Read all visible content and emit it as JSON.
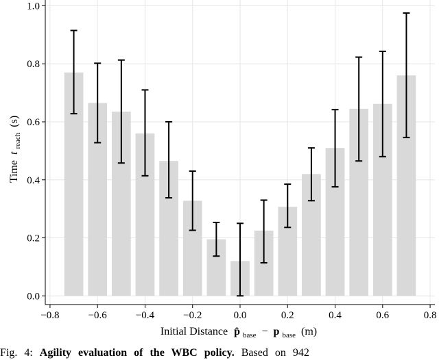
{
  "chart_data": {
    "type": "bar",
    "title": "",
    "xlabel": "Initial Distance",
    "xlabel_math": "p̂base − pbase (m)",
    "xlabel_parts": {
      "p_hat": "p̂",
      "sub1": "base",
      "minus": "−",
      "p": "p",
      "sub2": "base",
      "unit": "(m)"
    },
    "ylabel": "Time",
    "ylabel_var": "t",
    "ylabel_sub": "reach",
    "ylabel_unit": "(s)",
    "xlim": [
      -0.82,
      0.82
    ],
    "ylim": [
      -0.03,
      1.02
    ],
    "x_ticks": [
      "−0.8",
      "−0.6",
      "−0.4",
      "−0.2",
      "0.0",
      "0.2",
      "0.4",
      "0.6",
      "0.8"
    ],
    "x_tick_values": [
      -0.8,
      -0.6,
      -0.4,
      -0.2,
      0.0,
      0.2,
      0.4,
      0.6,
      0.8
    ],
    "y_ticks": [
      "0.0",
      "0.2",
      "0.4",
      "0.6",
      "0.8",
      "1.0"
    ],
    "y_tick_values": [
      0.0,
      0.2,
      0.4,
      0.6,
      0.8,
      1.0
    ],
    "grid": true,
    "bar_color": "#d9d9d9",
    "errorbar_color": "#000000",
    "x": [
      -0.7,
      -0.6,
      -0.5,
      -0.4,
      -0.3,
      -0.2,
      -0.1,
      0.0,
      0.1,
      0.2,
      0.3,
      0.4,
      0.5,
      0.6,
      0.7
    ],
    "values": [
      0.77,
      0.665,
      0.635,
      0.56,
      0.465,
      0.328,
      0.195,
      0.12,
      0.225,
      0.307,
      0.42,
      0.51,
      0.645,
      0.662,
      0.76
    ],
    "error_low": [
      0.628,
      0.528,
      0.458,
      0.414,
      0.338,
      0.226,
      0.137,
      0.0,
      0.114,
      0.236,
      0.328,
      0.376,
      0.465,
      0.48,
      0.546
    ],
    "error_high": [
      0.915,
      0.802,
      0.813,
      0.71,
      0.6,
      0.43,
      0.253,
      0.25,
      0.33,
      0.385,
      0.51,
      0.642,
      0.823,
      0.843,
      0.975
    ]
  },
  "caption": {
    "prefix": "Fig. 4:",
    "bold": "Agility evaluation of the WBC policy.",
    "rest": "Based on 942"
  }
}
